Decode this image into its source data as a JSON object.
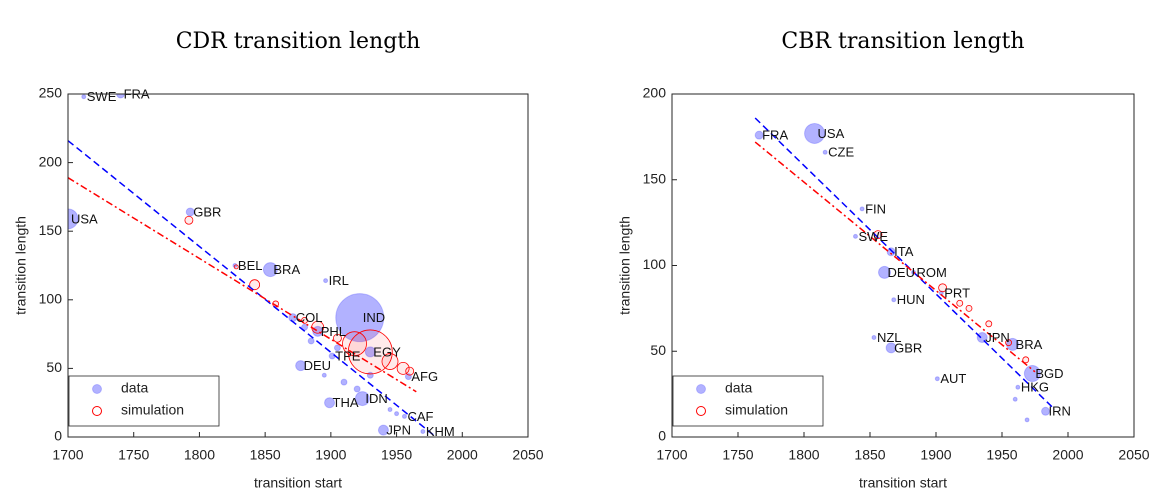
{
  "chart_data": [
    {
      "type": "scatter",
      "title": "CDR transition length",
      "xlabel": "transition start",
      "ylabel": "transition length",
      "xlim": [
        1700,
        2050
      ],
      "xticks": [
        1700,
        1750,
        1800,
        1850,
        1900,
        1950,
        2000,
        2050
      ],
      "ylim": [
        0,
        250
      ],
      "yticks": [
        0,
        50,
        100,
        150,
        200,
        250
      ],
      "grid": false,
      "legend": "southwest",
      "series": [
        {
          "name": "data",
          "color": "#0000ff",
          "marker": "filled",
          "x": [
            1712,
            1740,
            1700,
            1793,
            1827,
            1854,
            1896,
            1871,
            1890,
            1922,
            1901,
            1930,
            1877,
            1959,
            1899,
            1924,
            1956,
            1940,
            1970,
            1880,
            1885,
            1895,
            1910,
            1920,
            1905,
            1930,
            1945,
            1950
          ],
          "values": [
            248,
            250,
            159,
            164,
            125,
            122,
            114,
            87,
            77,
            87,
            59,
            62,
            52,
            44,
            25,
            28,
            15,
            5,
            4,
            80,
            70,
            45,
            40,
            35,
            65,
            45,
            20,
            17
          ],
          "sizes": [
            2,
            4,
            10,
            4,
            2,
            7,
            2,
            4,
            5,
            24,
            3,
            5,
            5,
            3,
            5,
            7,
            2,
            5,
            2,
            3,
            3,
            2,
            3,
            3,
            3,
            3,
            2,
            2
          ],
          "labels": [
            "SWE",
            "FRA",
            "USA",
            "GBR",
            "BEL",
            "BRA",
            "IRL",
            "COL",
            "PHL",
            "IND",
            "TPE",
            "EGY",
            "DEU",
            "AFG",
            "THA",
            "IDN",
            "CAF",
            "JPN",
            "KHM",
            null,
            null,
            null,
            null,
            null,
            null,
            null,
            null,
            null
          ]
        },
        {
          "name": "simulation",
          "color": "#ff0000",
          "marker": "open",
          "x": [
            1792,
            1828,
            1842,
            1858,
            1880,
            1890,
            1905,
            1918,
            1930,
            1945,
            1955,
            1960
          ],
          "values": [
            158,
            124,
            111,
            97,
            85,
            80,
            72,
            68,
            62,
            55,
            50,
            48
          ],
          "sizes": [
            4,
            2,
            5,
            3,
            3,
            6,
            4,
            12,
            22,
            8,
            6,
            4
          ]
        }
      ],
      "fits": [
        {
          "color": "#0000ff",
          "dash": "dashed",
          "x": [
            1700,
            1980
          ],
          "y": [
            216,
            0
          ]
        },
        {
          "color": "#ff0000",
          "dash": "dashdot",
          "x": [
            1700,
            1965
          ],
          "y": [
            189,
            33
          ]
        }
      ]
    },
    {
      "type": "scatter",
      "title": "CBR transition length",
      "xlabel": "transition start",
      "ylabel": "transition length",
      "xlim": [
        1700,
        2050
      ],
      "xticks": [
        1700,
        1750,
        1800,
        1850,
        1900,
        1950,
        2000,
        2050
      ],
      "ylim": [
        0,
        200
      ],
      "yticks": [
        0,
        50,
        100,
        150,
        200
      ],
      "grid": false,
      "legend": "southwest",
      "series": [
        {
          "name": "data",
          "color": "#0000ff",
          "marker": "filled",
          "x": [
            1766,
            1808,
            1816,
            1844,
            1839,
            1866,
            1861,
            1883,
            1904,
            1868,
            1853,
            1866,
            1935,
            1958,
            1901,
            1973,
            1962,
            1983,
            1969,
            1960
          ],
          "values": [
            176,
            177,
            166,
            133,
            117,
            108,
            96,
            96,
            84,
            80,
            58,
            52,
            58,
            54,
            34,
            37,
            29,
            15,
            10,
            22
          ],
          "sizes": [
            4,
            10,
            2,
            2,
            2,
            4,
            6,
            2,
            2,
            2,
            2,
            5,
            5,
            6,
            2,
            8,
            2,
            4,
            2,
            2
          ],
          "labels": [
            "FRA",
            "USA",
            "CZE",
            "FIN",
            "SWE",
            "ITA",
            "DEU",
            "ROM",
            "PRT",
            "HUN",
            "NZL",
            "GBR",
            "JPN",
            "BRA",
            "AUT",
            "BGD",
            "HKG",
            "IRN",
            null,
            null
          ]
        },
        {
          "name": "simulation",
          "color": "#ff0000",
          "marker": "open",
          "x": [
            1856,
            1905,
            1918,
            1925,
            1940,
            1955,
            1968
          ],
          "values": [
            118,
            87,
            78,
            75,
            66,
            55,
            45
          ],
          "sizes": [
            4,
            4,
            3,
            3,
            3,
            3,
            3
          ]
        }
      ],
      "fits": [
        {
          "color": "#0000ff",
          "dash": "dashed",
          "x": [
            1763,
            1990
          ],
          "y": [
            186,
            16
          ]
        },
        {
          "color": "#ff0000",
          "dash": "dashdot",
          "x": [
            1763,
            1975
          ],
          "y": [
            172,
            38
          ]
        }
      ]
    }
  ]
}
